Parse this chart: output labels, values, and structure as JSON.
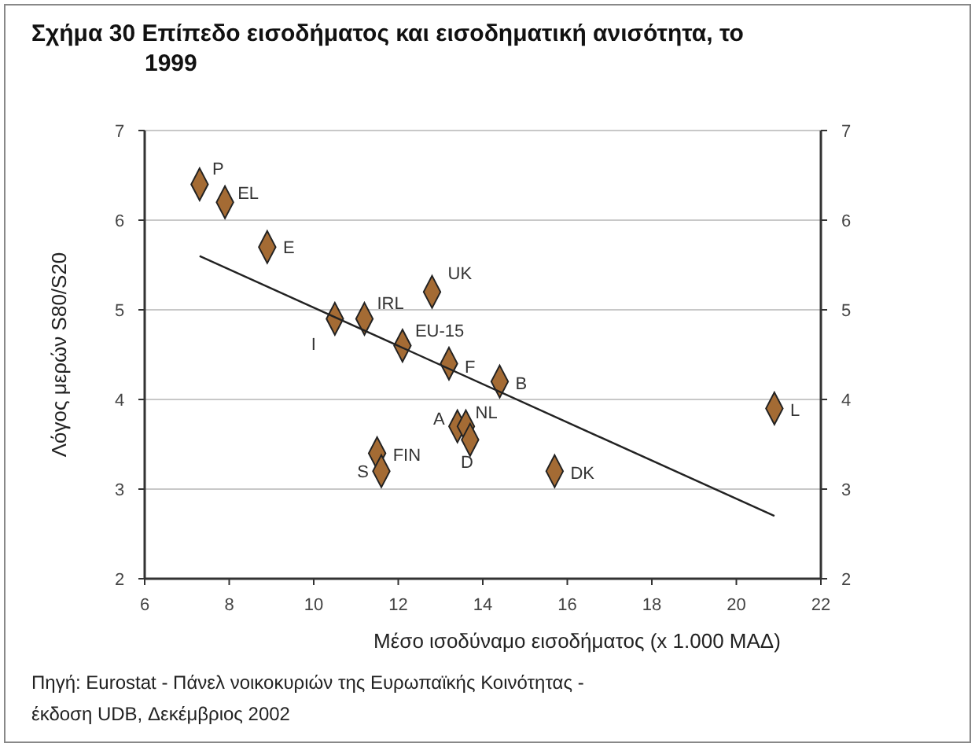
{
  "chart_data": {
    "type": "scatter",
    "title": "Σχήμα 30  Επίπεδο εισοδήματος και εισοδηματική ανισότητα, το 1999",
    "xlabel": "Μέσο ισοδύναμο εισοδήματος (x 1.000 ΜΑΔ)",
    "ylabel": "Λόγος μερών  S80/S20",
    "xlim": [
      6,
      22
    ],
    "xticks": [
      6,
      8,
      10,
      12,
      14,
      16,
      18,
      20,
      22
    ],
    "ylim": [
      2,
      7
    ],
    "yticks": [
      2,
      3,
      4,
      5,
      6,
      7
    ],
    "y2lim": [
      2,
      7
    ],
    "y2ticks": [
      2,
      3,
      4,
      5,
      6,
      7
    ],
    "grid": "y",
    "marker": "diamond",
    "series": [
      {
        "color": "#a46b34",
        "x": [
          7.3,
          7.9,
          8.9,
          10.5,
          11.2,
          12.1,
          12.8,
          13.2,
          14.4,
          13.4,
          13.6,
          13.7,
          11.5,
          11.6,
          15.7,
          20.9
        ],
        "values": [
          6.4,
          6.2,
          5.7,
          4.9,
          4.9,
          4.6,
          5.2,
          4.4,
          4.2,
          3.7,
          3.7,
          3.55,
          3.4,
          3.2,
          3.2,
          3.9
        ]
      },
      {
        "type": "line",
        "color": "#222222",
        "x": [
          7.3,
          20.9
        ],
        "values": [
          5.6,
          2.7
        ],
        "marker": "none",
        "line_style": "solid"
      }
    ],
    "annotations": [
      {
        "text": "P",
        "x": 7.3,
        "y": 6.4
      },
      {
        "text": "EL",
        "x": 7.9,
        "y": 6.2
      },
      {
        "text": "E",
        "x": 8.9,
        "y": 5.7
      },
      {
        "text": "I",
        "x": 10.5,
        "y": 4.9
      },
      {
        "text": "IRL",
        "x": 11.2,
        "y": 4.9
      },
      {
        "text": "EU-15",
        "x": 12.1,
        "y": 4.6
      },
      {
        "text": "UK",
        "x": 12.8,
        "y": 5.2
      },
      {
        "text": "F",
        "x": 13.2,
        "y": 4.4
      },
      {
        "text": "B",
        "x": 14.4,
        "y": 4.2
      },
      {
        "text": "A",
        "x": 13.4,
        "y": 3.7
      },
      {
        "text": "NL",
        "x": 13.6,
        "y": 3.7
      },
      {
        "text": "D",
        "x": 13.7,
        "y": 3.55
      },
      {
        "text": "FIN",
        "x": 11.5,
        "y": 3.4
      },
      {
        "text": "S",
        "x": 11.6,
        "y": 3.2
      },
      {
        "text": "DK",
        "x": 15.7,
        "y": 3.2
      },
      {
        "text": "L",
        "x": 20.9,
        "y": 3.9
      },
      "Πηγή: Eurostat - Πάνελ νοικοκυριών της Ευρωπαϊκής Κοινότητας - έκδοση UDB, Δεκέμβριος 2002"
    ]
  }
}
